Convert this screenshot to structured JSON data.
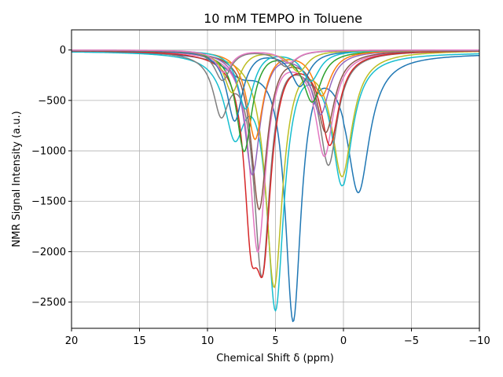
{
  "chart_data": {
    "type": "line",
    "title": "10 mM TEMPO in Toluene",
    "xlabel": "Chemical Shift δ (ppm)",
    "ylabel": "NMR Signal Intensity (a.u.)",
    "xlim": [
      20,
      -10
    ],
    "ylim": [
      -2760,
      200
    ],
    "x_inverted": true,
    "grid": true,
    "xticks": [
      20,
      15,
      10,
      5,
      0,
      -5,
      -10
    ],
    "xtick_labels": [
      "20",
      "15",
      "10",
      "5",
      "0",
      "−5",
      "−10"
    ],
    "yticks": [
      0,
      -500,
      -1000,
      -1500,
      -2000,
      -2500
    ],
    "ytick_labels": [
      "0",
      "−500",
      "−1000",
      "−1500",
      "−2000",
      "−2500"
    ],
    "series": [
      {
        "color": "#1f77b4",
        "peaks": [
          {
            "x": 3.7,
            "y": -2620,
            "w": 0.7
          },
          {
            "x": -1.1,
            "y": -1330,
            "w": 1.0
          },
          {
            "x": 7.5,
            "y": -180,
            "w": 1.5
          }
        ],
        "offset": -30
      },
      {
        "color": "#17becf",
        "peaks": [
          {
            "x": 5.0,
            "y": -2490,
            "w": 0.75
          },
          {
            "x": 0.1,
            "y": -1280,
            "w": 0.9
          },
          {
            "x": 8.0,
            "y": -740,
            "w": 0.9
          }
        ],
        "offset": -20
      },
      {
        "color": "#bcbd22",
        "peaks": [
          {
            "x": 5.1,
            "y": -2330,
            "w": 0.75
          },
          {
            "x": 0.1,
            "y": -1210,
            "w": 0.9
          }
        ],
        "offset": 0
      },
      {
        "color": "#7f7f7f",
        "peaks": [
          {
            "x": 6.0,
            "y": -2210,
            "w": 0.7
          },
          {
            "x": 1.1,
            "y": -1100,
            "w": 0.8
          },
          {
            "x": 9.0,
            "y": -550,
            "w": 0.7
          }
        ],
        "offset": 0
      },
      {
        "color": "#e377c2",
        "peaks": [
          {
            "x": 6.3,
            "y": -1990,
            "w": 0.7
          },
          {
            "x": 1.4,
            "y": -1020,
            "w": 0.8
          }
        ],
        "offset": 0
      },
      {
        "color": "#d62728",
        "peaks": [
          {
            "x": 5.9,
            "y": -1770,
            "w": 0.7
          },
          {
            "x": 1.0,
            "y": -900,
            "w": 0.8
          },
          {
            "x": 6.8,
            "y": -1410,
            "w": 0.6
          }
        ],
        "offset": 0
      },
      {
        "color": "#8c564b",
        "peaks": [
          {
            "x": 6.2,
            "y": -1570,
            "w": 0.7
          },
          {
            "x": 1.3,
            "y": -790,
            "w": 0.8
          }
        ],
        "offset": 0
      },
      {
        "color": "#9467bd",
        "peaks": [
          {
            "x": 6.7,
            "y": -1230,
            "w": 0.7
          },
          {
            "x": 1.7,
            "y": -620,
            "w": 0.8
          }
        ],
        "offset": 0
      },
      {
        "color": "#2ca02c",
        "peaks": [
          {
            "x": 7.3,
            "y": -1000,
            "w": 0.7
          },
          {
            "x": 2.3,
            "y": -500,
            "w": 0.8
          }
        ],
        "offset": 0
      },
      {
        "color": "#ff7f0e",
        "peaks": [
          {
            "x": 6.5,
            "y": -880,
            "w": 0.7
          },
          {
            "x": 1.6,
            "y": -440,
            "w": 0.8
          }
        ],
        "offset": 0
      },
      {
        "color": "#1f77b4",
        "peaks": [
          {
            "x": 8.0,
            "y": -700,
            "w": 0.7
          },
          {
            "x": 3.2,
            "y": -350,
            "w": 0.8
          }
        ],
        "offset": 0
      },
      {
        "color": "#17becf",
        "peaks": [
          {
            "x": 7.2,
            "y": -580,
            "w": 0.7
          },
          {
            "x": 2.4,
            "y": -300,
            "w": 0.8
          }
        ],
        "offset": 0
      },
      {
        "color": "#bcbd22",
        "peaks": [
          {
            "x": 8.2,
            "y": -420,
            "w": 0.7
          },
          {
            "x": 3.3,
            "y": -210,
            "w": 0.8
          }
        ],
        "offset": 0
      },
      {
        "color": "#7f7f7f",
        "peaks": [
          {
            "x": 8.9,
            "y": -300,
            "w": 0.7
          },
          {
            "x": 4.2,
            "y": -160,
            "w": 0.8
          }
        ],
        "offset": 0
      },
      {
        "color": "#e377c2",
        "peaks": [
          {
            "x": 8.8,
            "y": -220,
            "w": 0.7
          },
          {
            "x": 4.0,
            "y": -120,
            "w": 0.8
          }
        ],
        "offset": 0
      }
    ]
  }
}
